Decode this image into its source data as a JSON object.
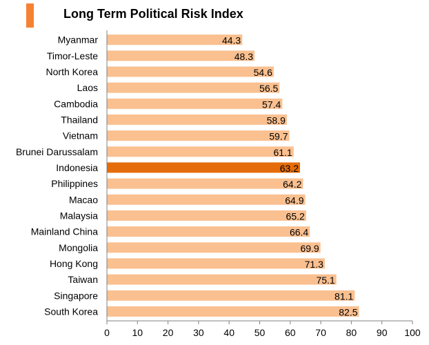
{
  "chart_data": {
    "type": "bar",
    "orientation": "horizontal",
    "title": "Long Term Political Risk Index",
    "categories": [
      "Myanmar",
      "Timor-Leste",
      "North Korea",
      "Laos",
      "Cambodia",
      "Thailand",
      "Vietnam",
      "Brunei Darussalam",
      "Indonesia",
      "Philippines",
      "Macao",
      "Malaysia",
      "Mainland China",
      "Mongolia",
      "Hong Kong",
      "Taiwan",
      "Singapore",
      "South Korea"
    ],
    "values": [
      44.3,
      48.3,
      54.6,
      56.5,
      57.4,
      58.9,
      59.7,
      61.1,
      63.2,
      64.2,
      64.9,
      65.2,
      66.4,
      69.9,
      71.3,
      75.1,
      81.1,
      82.5
    ],
    "highlight": "Indonesia",
    "xlim": [
      0,
      100
    ],
    "xticks": [
      0,
      10,
      20,
      30,
      40,
      50,
      60,
      70,
      80,
      90,
      100
    ],
    "grid": false,
    "colors": {
      "bar": "#FAC090",
      "highlight": "#E46C0A",
      "accent": "#F58232"
    }
  }
}
